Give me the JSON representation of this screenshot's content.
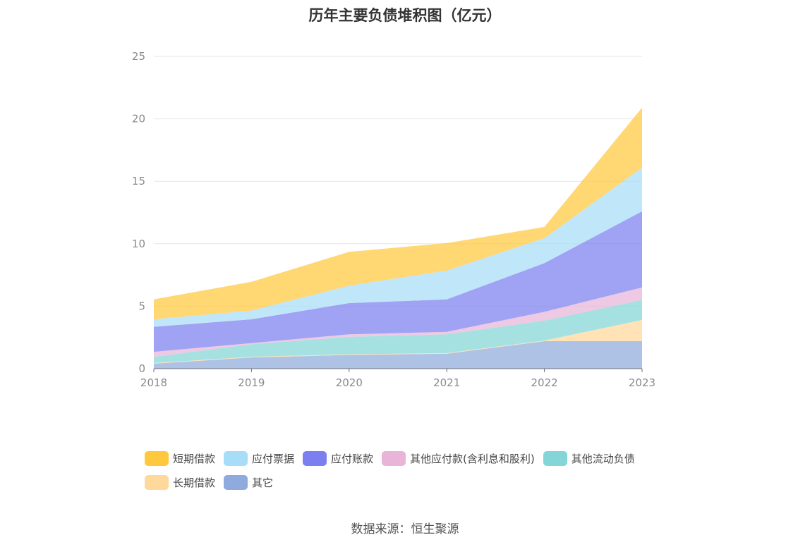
{
  "chart_data": {
    "type": "area",
    "stacked": true,
    "title": "历年主要负债堆积图（亿元）",
    "x": [
      "2018",
      "2019",
      "2020",
      "2021",
      "2022",
      "2023"
    ],
    "ylim": [
      0,
      25
    ],
    "yticks": [
      0,
      5,
      10,
      15,
      20,
      25
    ],
    "grid": true,
    "legend_position": "bottom",
    "series": [
      {
        "name": "其它",
        "color": "#8faadc",
        "values": [
          0.4,
          0.9,
          1.1,
          1.2,
          2.2,
          2.2
        ]
      },
      {
        "name": "长期借款",
        "color": "#ffd89b",
        "values": [
          0.05,
          0.05,
          0.05,
          0.05,
          0.05,
          1.7
        ]
      },
      {
        "name": "其他流动负债",
        "color": "#84d5d7",
        "values": [
          0.5,
          1.0,
          1.4,
          1.5,
          1.6,
          1.6
        ]
      },
      {
        "name": "其他应付款(含利息和股利)",
        "color": "#e8b4d8",
        "values": [
          0.4,
          0.1,
          0.2,
          0.2,
          0.7,
          1.0
        ]
      },
      {
        "name": "应付账款",
        "color": "#7b7ff0",
        "values": [
          2.0,
          1.9,
          2.5,
          2.6,
          3.9,
          6.1
        ]
      },
      {
        "name": "应付票据",
        "color": "#a8ddf8",
        "values": [
          0.6,
          0.7,
          1.4,
          2.3,
          2.0,
          3.5
        ]
      },
      {
        "name": "短期借款",
        "color": "#ffc83d",
        "values": [
          1.6,
          2.3,
          2.7,
          2.2,
          0.9,
          4.8
        ]
      }
    ],
    "legend_order": [
      "短期借款",
      "应付票据",
      "应付账款",
      "其他应付款(含利息和股利)",
      "其他流动负债",
      "长期借款",
      "其它"
    ]
  },
  "source": "数据来源：恒生聚源"
}
